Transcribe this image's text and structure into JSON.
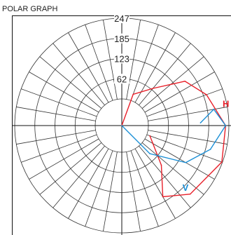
{
  "title": "POLAR GRAPH",
  "chart_data": {
    "type": "polar-line",
    "title": "POLAR GRAPH",
    "radial_ticks": [
      "62",
      "123",
      "185",
      "247"
    ],
    "r_max": 247,
    "angular_divisions": 36,
    "grid": true,
    "series": [
      {
        "name": "H",
        "color": "#e8202a",
        "points": [
          [
            90,
            0
          ],
          [
            70,
            20
          ],
          [
            50,
            67
          ],
          [
            35,
            155
          ],
          [
            20,
            195
          ],
          [
            0,
            237
          ],
          [
            -20,
            245
          ],
          [
            -45,
            215
          ],
          [
            -60,
            170
          ],
          [
            -45,
            90
          ],
          [
            -20,
            10
          ]
        ]
      },
      {
        "name": "V",
        "color": "#1b8fd6",
        "points": [
          [
            -90,
            0
          ],
          [
            -45,
            40
          ],
          [
            -30,
            145
          ],
          [
            -15,
            200
          ],
          [
            0,
            237
          ],
          [
            10,
            205
          ],
          [
            2,
            160
          ]
        ]
      }
    ]
  }
}
